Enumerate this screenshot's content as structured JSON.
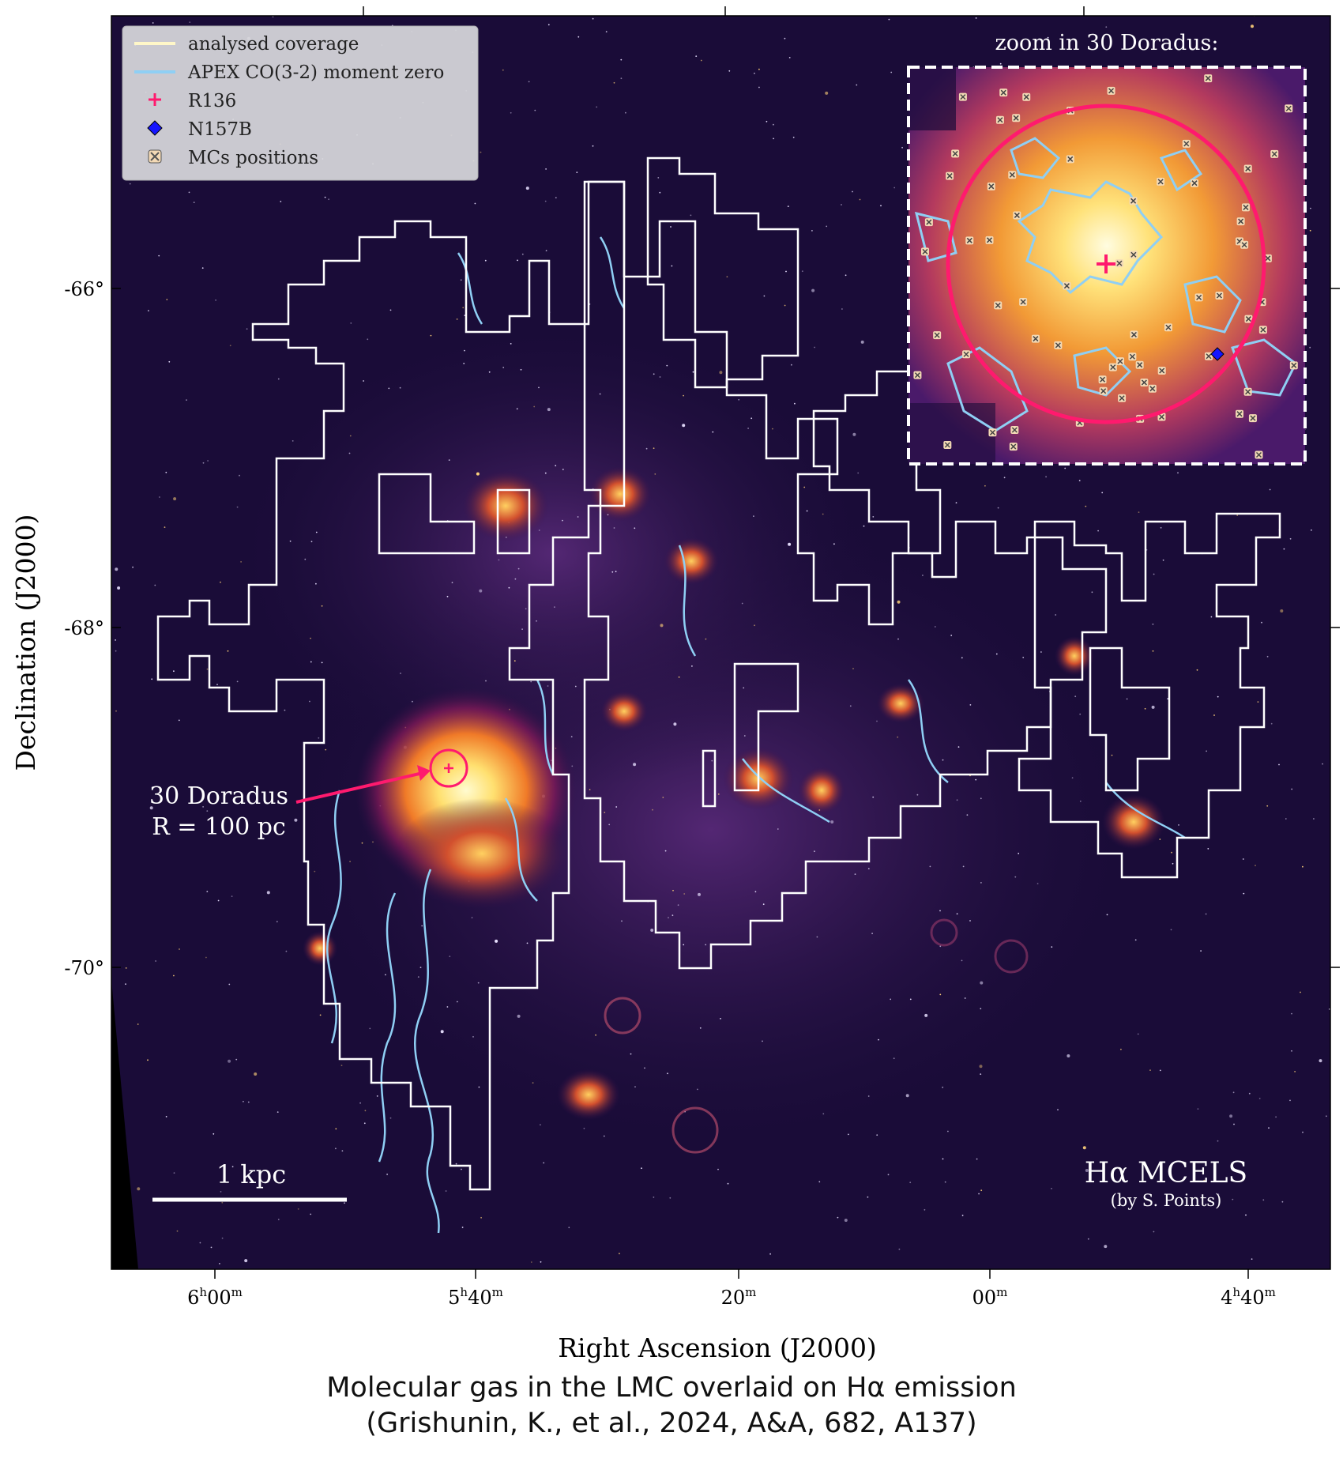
{
  "figure": {
    "legend": {
      "items": [
        {
          "label": "analysed coverage",
          "symbol": "line",
          "color": "#fff7c8"
        },
        {
          "label": "APEX CO(3-2) moment zero",
          "symbol": "line",
          "color": "#8fcff4"
        },
        {
          "label": "R136",
          "symbol": "plus",
          "color": "#ff1a6e"
        },
        {
          "label": "N157B",
          "symbol": "diamond",
          "color": "#1515ff"
        },
        {
          "label": "MCs positions",
          "symbol": "x-marker",
          "color": "#f3d9b5"
        }
      ]
    },
    "inset_title": "zoom in 30 Doradus:",
    "annotation": {
      "line1": "30 Doradus",
      "line2": "R = 100 pc"
    },
    "scalebar_label": "1 kpc",
    "credit": {
      "line1": "Hα MCELS",
      "line2": "(by S. Points)"
    },
    "axes": {
      "ylabel": "Declination (J2000)",
      "xlabel": "Right Ascension (J2000)",
      "yticks": [
        "-66°",
        "-68°",
        "-70°"
      ],
      "xticks": [
        {
          "main": "6",
          "sup1": "h",
          "mid": "00",
          "sup2": "m"
        },
        {
          "main": "5",
          "sup1": "h",
          "mid": "40",
          "sup2": "m"
        },
        {
          "main": "",
          "sup1": "",
          "mid": "20",
          "sup2": "m"
        },
        {
          "main": "",
          "sup1": "",
          "mid": "00",
          "sup2": "m"
        },
        {
          "main": "4",
          "sup1": "h",
          "mid": "40",
          "sup2": "m"
        }
      ]
    },
    "colors": {
      "background": "#1a0c38",
      "coverage": "#ffffff",
      "co_contours": "#8fcff4",
      "r136": "#ff1a6e",
      "n157b": "#1515ff",
      "emission_hot": "#fff4a0",
      "emission_warm": "#f08a2a"
    }
  },
  "caption": {
    "line1": "Molecular gas in the LMC overlaid on Hα emission",
    "line2": "(Grishunin, K., et al., 2024, A&A, 682, A137)"
  }
}
